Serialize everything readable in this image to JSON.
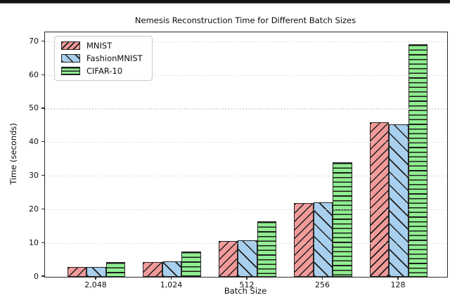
{
  "page": {
    "background": "#ffffff",
    "top_divider_color": "#141414"
  },
  "chart_data": {
    "type": "bar",
    "title": "Nemesis Reconstruction Time for Different Batch Sizes",
    "xlabel": "Batch Size",
    "ylabel": "Time (seconds)",
    "categories": [
      "2,048",
      "1,024",
      "512",
      "256",
      "128"
    ],
    "series": [
      {
        "name": "MNIST",
        "color": "#f29a9a",
        "edge_color": "#262626",
        "hatch": "/",
        "values": [
          3.0,
          4.3,
          10.7,
          22.0,
          46.0
        ]
      },
      {
        "name": "FashionMNIST",
        "color": "#a8cfed",
        "edge_color": "#262626",
        "hatch": "\\",
        "values": [
          2.9,
          4.7,
          10.9,
          22.2,
          45.4
        ]
      },
      {
        "name": "CIFAR-10",
        "color": "#90ee90",
        "edge_color": "#262626",
        "hatch": "-",
        "values": [
          4.4,
          7.5,
          16.5,
          34.2,
          69.3
        ]
      }
    ],
    "yticks": [
      0,
      10,
      20,
      30,
      40,
      50,
      60,
      70
    ],
    "ylim": [
      0,
      72.8
    ],
    "grid": {
      "axis": "y",
      "style": "dotted",
      "color": "#d2d2d2",
      "above_bars": true
    },
    "legend": {
      "position": "upper left",
      "entries": [
        "MNIST",
        "FashionMNIST",
        "CIFAR-10"
      ]
    },
    "hatch_line_color": "#1c1c1c"
  }
}
